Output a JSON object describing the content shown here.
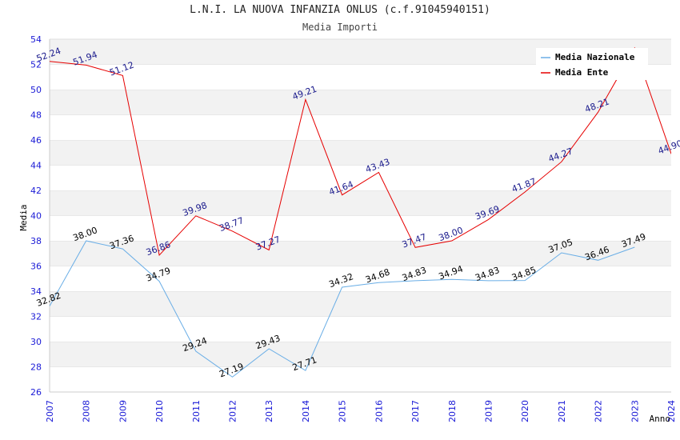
{
  "title": "L.N.I. LA NUOVA INFANZIA ONLUS (c.f.91045940151)",
  "subtitle": "Media Importi",
  "chart_data": {
    "type": "line",
    "ylabel": "Media",
    "xlabel": "Anno",
    "ylim": [
      26,
      54
    ],
    "y_ticks": [
      26,
      28,
      30,
      32,
      34,
      36,
      38,
      40,
      42,
      44,
      46,
      48,
      50,
      52,
      54
    ],
    "x": [
      "2007",
      "2008",
      "2009",
      "2010",
      "2011",
      "2012",
      "2013",
      "2014",
      "2015",
      "2016",
      "2017",
      "2018",
      "2019",
      "2020",
      "2021",
      "2022",
      "2023",
      "2024"
    ],
    "grid": "horizontal bands",
    "legend": "top-right",
    "series": [
      {
        "name": "Media Nazionale",
        "color": "#6aaee6",
        "label_color": "#000000",
        "values": [
          32.82,
          38.0,
          37.36,
          34.79,
          29.24,
          27.19,
          29.43,
          27.71,
          34.32,
          34.68,
          34.83,
          34.94,
          34.83,
          34.85,
          37.05,
          36.46,
          37.49,
          null
        ],
        "labels": [
          "32.82",
          "38.00",
          "37.36",
          "34.79",
          "29.24",
          "27.19",
          "29.43",
          "27.71",
          "34.32",
          "34.68",
          "34.83",
          "34.94",
          "34.83",
          "34.85",
          "37.05",
          "36.46",
          "37.49",
          ""
        ]
      },
      {
        "name": "Media Ente",
        "color": "#e60000",
        "label_color": "#1a1a8c",
        "values": [
          52.24,
          51.94,
          51.12,
          36.86,
          39.98,
          38.77,
          37.27,
          49.21,
          41.64,
          43.43,
          37.47,
          38.0,
          39.69,
          41.87,
          44.27,
          48.21,
          53.3,
          44.9
        ],
        "labels": [
          "52.24",
          "51.94",
          "51.12",
          "36.86",
          "39.98",
          "38.77",
          "37.27",
          "49.21",
          "41.64",
          "43.43",
          "37.47",
          "38.00",
          "39.69",
          "41.87",
          "44.27",
          "48.21",
          "",
          "44.90"
        ]
      }
    ]
  }
}
